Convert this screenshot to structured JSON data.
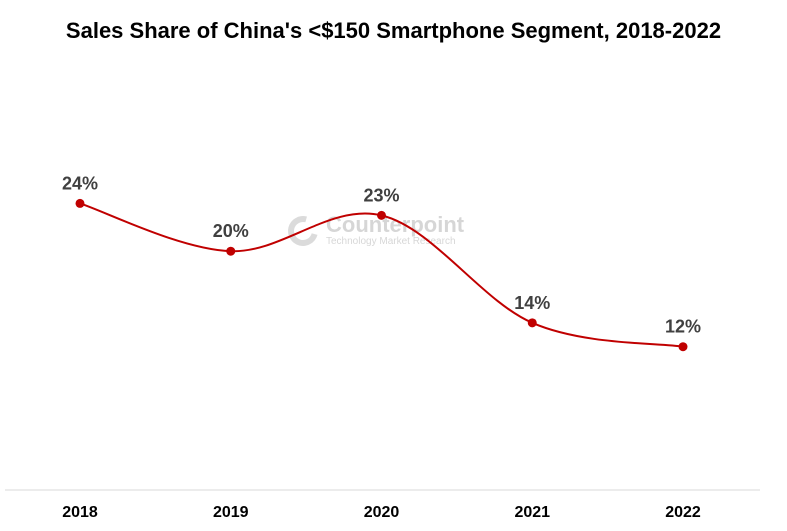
{
  "chart_data": {
    "type": "line",
    "title": "Sales Share of China's <$150 Smartphone Segment, 2018-2022",
    "categories": [
      "2018",
      "2019",
      "2020",
      "2021",
      "2022"
    ],
    "series": [
      {
        "values": [
          24,
          20,
          23,
          14,
          12
        ],
        "labels": [
          "24%",
          "20%",
          "23%",
          "14%",
          "12%"
        ]
      }
    ],
    "xlabel": "",
    "ylabel": "",
    "ylim": [
      0,
      33.5
    ],
    "grid": false,
    "legend": "none",
    "line_color": "#c00000",
    "label_color": "#404040"
  },
  "watermark": {
    "brand": "Counterpoint",
    "tagline": "Technology Market Research"
  }
}
